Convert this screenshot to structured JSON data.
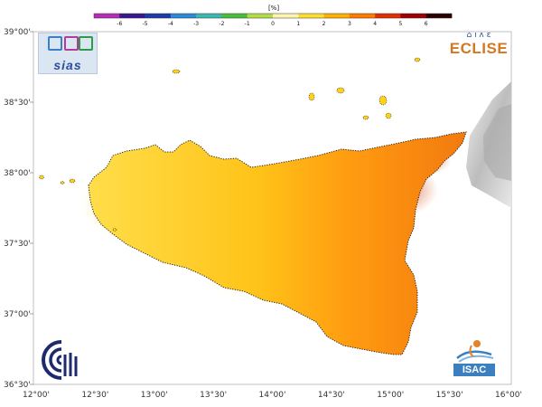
{
  "colorbar": {
    "unit_label": "[%]",
    "ticks": [
      "-6",
      "-5",
      "-4",
      "-3",
      "-2",
      "-1",
      "0",
      "1",
      "2",
      "3",
      "4",
      "5",
      "6"
    ],
    "colors": [
      "#b62cb8",
      "#3a1590",
      "#1c3aa8",
      "#2b8ad8",
      "#39b7b0",
      "#48bf3c",
      "#b4dc46",
      "#fff5b0",
      "#ffdd30",
      "#ffb000",
      "#ff7a00",
      "#e03000",
      "#9c0000",
      "#2a0000"
    ]
  },
  "axes": {
    "lat_labels": [
      "39°00'",
      "38°30'",
      "38°00'",
      "37°30'",
      "37°00'",
      "36°30'"
    ],
    "lon_labels": [
      "12°00'",
      "12°30'",
      "13°00'",
      "13°30'",
      "14°00'",
      "14°30'",
      "15°00'",
      "15°30'",
      "16°00'"
    ]
  },
  "map_colors": {
    "low": "#ffeb8a",
    "mid": "#ffd21a",
    "mid_high": "#ffb000",
    "high": "#f07a10",
    "peak": "#cc2a10",
    "relief": "#bdbdbd"
  },
  "logos": {
    "sias": {
      "label": "sias",
      "icon": "sias-logo-icon"
    },
    "eclise": {
      "label": "ECLISE",
      "icons": "⌂ ı ʌ ɛ"
    },
    "cnr": {
      "icon": "cnr-logo-icon"
    },
    "isac": {
      "label": "ISAC",
      "icon": "isac-logo-icon"
    }
  }
}
